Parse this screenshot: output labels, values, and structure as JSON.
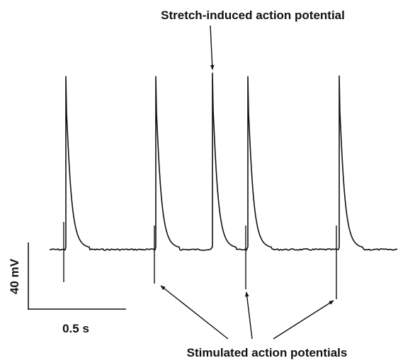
{
  "annotations": {
    "stretch": "Stretch-induced action potential",
    "stimulated": "Stimulated action potentials"
  },
  "scale_bars": {
    "voltage": "40 mV",
    "time": "0.5 s"
  }
}
